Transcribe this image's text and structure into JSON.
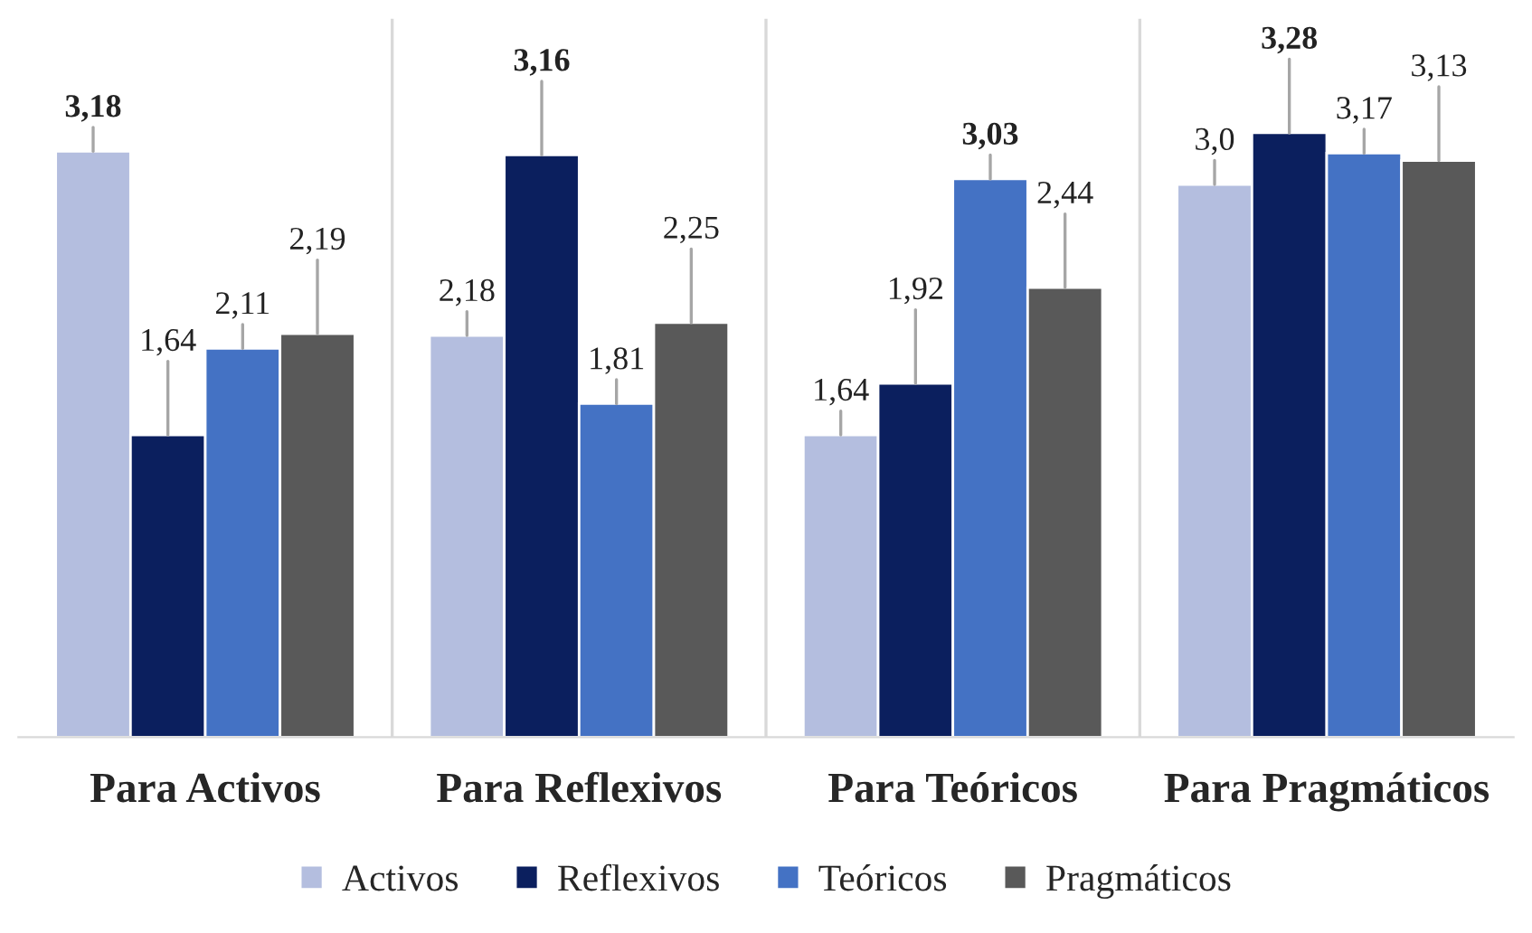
{
  "chart_data": {
    "type": "bar",
    "categories": [
      "Para Activos",
      "Para Reflexivos",
      "Para Teóricos",
      "Para Pragmáticos"
    ],
    "series": [
      {
        "name": "Activos",
        "color": "#b4bedf",
        "values": [
          3.18,
          2.18,
          1.64,
          3.0
        ],
        "value_labels": [
          "3,18",
          "2,18",
          "1,64",
          "3,0"
        ]
      },
      {
        "name": "Reflexivos",
        "color": "#0b1f5e",
        "values": [
          1.64,
          3.16,
          1.92,
          3.28
        ],
        "value_labels": [
          "1,64",
          "3,16",
          "1,92",
          "3,28"
        ]
      },
      {
        "name": "Teóricos",
        "color": "#4472c4",
        "values": [
          2.11,
          1.81,
          3.03,
          3.17
        ],
        "value_labels": [
          "2,11",
          "1,81",
          "3,03",
          "3,17"
        ]
      },
      {
        "name": "Pragmáticos",
        "color": "#595959",
        "values": [
          2.19,
          2.25,
          2.44,
          3.13
        ],
        "value_labels": [
          "2,19",
          "2,25",
          "2,44",
          "3,13"
        ]
      }
    ],
    "ylim": [
      0,
      3.9
    ],
    "grid": "x",
    "legend": "bottom",
    "tick_labels": "x"
  }
}
